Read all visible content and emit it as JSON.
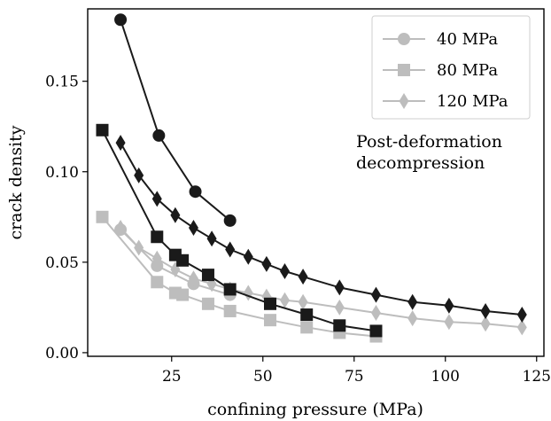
{
  "chart_data": {
    "type": "line",
    "xlabel": "confining pressure (MPa)",
    "ylabel": "crack density",
    "xlim": [
      2,
      127
    ],
    "ylim": [
      -0.002,
      0.19
    ],
    "xticks": [
      25,
      50,
      75,
      100,
      125
    ],
    "yticks": [
      0.0,
      0.05,
      0.1,
      0.15
    ],
    "ytick_labels": [
      "0.00",
      "0.05",
      "0.10",
      "0.15"
    ],
    "grid": false,
    "legend_placement": "top-right",
    "annotation": [
      "Post-deformation",
      "decompression"
    ],
    "legend": [
      {
        "name": "40 MPa",
        "marker": "circle",
        "color": "#bdbdbd"
      },
      {
        "name": "80 MPa",
        "marker": "square",
        "color": "#bdbdbd"
      },
      {
        "name": "120 MPa",
        "marker": "diamond",
        "color": "#bdbdbd"
      }
    ],
    "series": [
      {
        "name": "40 MPa",
        "phase": "black",
        "marker": "circle",
        "color": "#1a1a1a",
        "x": [
          11,
          21.5,
          31.5,
          41
        ],
        "y": [
          0.184,
          0.12,
          0.089,
          0.073
        ]
      },
      {
        "name": "80 MPa",
        "phase": "black",
        "marker": "square",
        "color": "#1a1a1a",
        "x": [
          6,
          21,
          26,
          28,
          35,
          41,
          52,
          62,
          71,
          81
        ],
        "y": [
          0.123,
          0.064,
          0.054,
          0.051,
          0.043,
          0.035,
          0.027,
          0.021,
          0.015,
          0.012
        ]
      },
      {
        "name": "120 MPa",
        "phase": "black",
        "marker": "diamond",
        "color": "#1a1a1a",
        "x": [
          11,
          16,
          21,
          26,
          31,
          36,
          41,
          46,
          51,
          56,
          61,
          71,
          81,
          91,
          101,
          111,
          121
        ],
        "y": [
          0.116,
          0.098,
          0.085,
          0.076,
          0.069,
          0.063,
          0.057,
          0.053,
          0.049,
          0.045,
          0.042,
          0.036,
          0.032,
          0.028,
          0.026,
          0.023,
          0.021
        ]
      },
      {
        "name": "40 MPa",
        "phase": "grey",
        "marker": "circle",
        "color": "#bdbdbd",
        "x": [
          11,
          21,
          31,
          41
        ],
        "y": [
          0.068,
          0.048,
          0.038,
          0.032
        ]
      },
      {
        "name": "80 MPa",
        "phase": "grey",
        "marker": "square",
        "color": "#bdbdbd",
        "x": [
          6,
          21,
          26,
          28,
          35,
          41,
          52,
          62,
          71,
          81
        ],
        "y": [
          0.075,
          0.039,
          0.033,
          0.032,
          0.027,
          0.023,
          0.018,
          0.014,
          0.011,
          0.009
        ]
      },
      {
        "name": "120 MPa",
        "phase": "grey",
        "marker": "diamond",
        "color": "#bdbdbd",
        "x": [
          11,
          16,
          21,
          26,
          31,
          36,
          41,
          46,
          51,
          56,
          61,
          71,
          81,
          91,
          101,
          111,
          121
        ],
        "y": [
          0.069,
          0.058,
          0.052,
          0.046,
          0.041,
          0.038,
          0.035,
          0.033,
          0.031,
          0.029,
          0.028,
          0.025,
          0.022,
          0.019,
          0.017,
          0.016,
          0.014
        ]
      }
    ]
  }
}
